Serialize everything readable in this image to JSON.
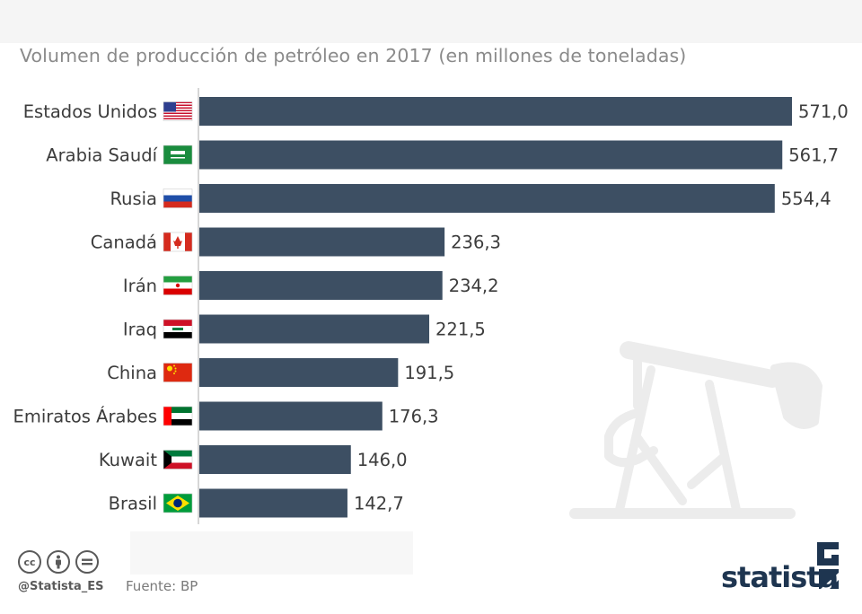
{
  "subtitle": "Volumen de producción de petróleo en 2017 (en millones de toneladas)",
  "footer": {
    "handle": "@Statista_ES",
    "source": "Fuente: BP",
    "brand": "statista",
    "license_icons": [
      "cc-icon",
      "attribution-icon",
      "no-derivatives-icon"
    ]
  },
  "colors": {
    "bar": "#3d4f63",
    "axis": "#c8c8c8",
    "label": "#3c3c3c",
    "watermark": "#ececec"
  },
  "chart_data": {
    "type": "bar",
    "orientation": "horizontal",
    "title": "",
    "categories": [
      "Estados Unidos",
      "Arabia Saudí",
      "Rusia",
      "Canadá",
      "Irán",
      "Iraq",
      "China",
      "Emiratos Árabes",
      "Kuwait",
      "Brasil"
    ],
    "values": [
      571.0,
      561.7,
      554.4,
      236.3,
      234.2,
      221.5,
      191.5,
      176.3,
      146.0,
      142.7
    ],
    "value_labels": [
      "571,0",
      "561,7",
      "554,4",
      "236,3",
      "234,2",
      "221,5",
      "191,5",
      "176,3",
      "146,0",
      "142,7"
    ],
    "flags": [
      "usa-flag",
      "saudi-arabia-flag",
      "russia-flag",
      "canada-flag",
      "iran-flag",
      "iraq-flag",
      "china-flag",
      "uae-flag",
      "kuwait-flag",
      "brazil-flag"
    ],
    "xlim": [
      0,
      571.0
    ],
    "grid": false,
    "legend": "none"
  }
}
